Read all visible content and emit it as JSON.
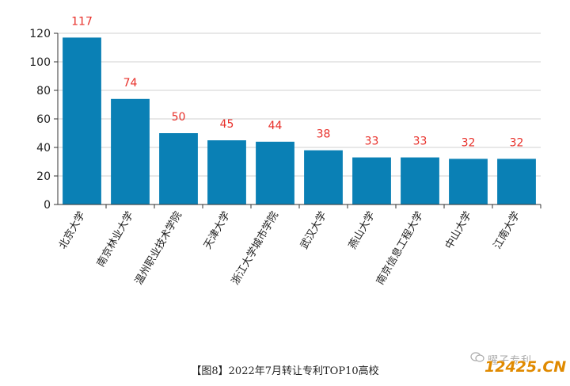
{
  "chart_data": {
    "type": "bar",
    "categories": [
      "北京大学",
      "南京林业大学",
      "温州职业技术学院",
      "天津大学",
      "浙江大学城市学院",
      "武汉大学",
      "燕山大学",
      "南京信息工程大学",
      "中山大学",
      "江南大学"
    ],
    "values": [
      117,
      74,
      50,
      45,
      44,
      38,
      33,
      33,
      32,
      32
    ],
    "ylim": [
      0,
      120
    ],
    "yticks": [
      0,
      20,
      40,
      60,
      80,
      100,
      120
    ],
    "grid": true,
    "colors": {
      "bar": "#0a80b5",
      "label": "#e8302a",
      "grid": "#d0d0d0",
      "axis": "#333333"
    }
  },
  "caption": "【图8】2022年7月转让专利TOP10高校",
  "watermark": {
    "account": "曜子专利",
    "site": "12425.CN"
  }
}
